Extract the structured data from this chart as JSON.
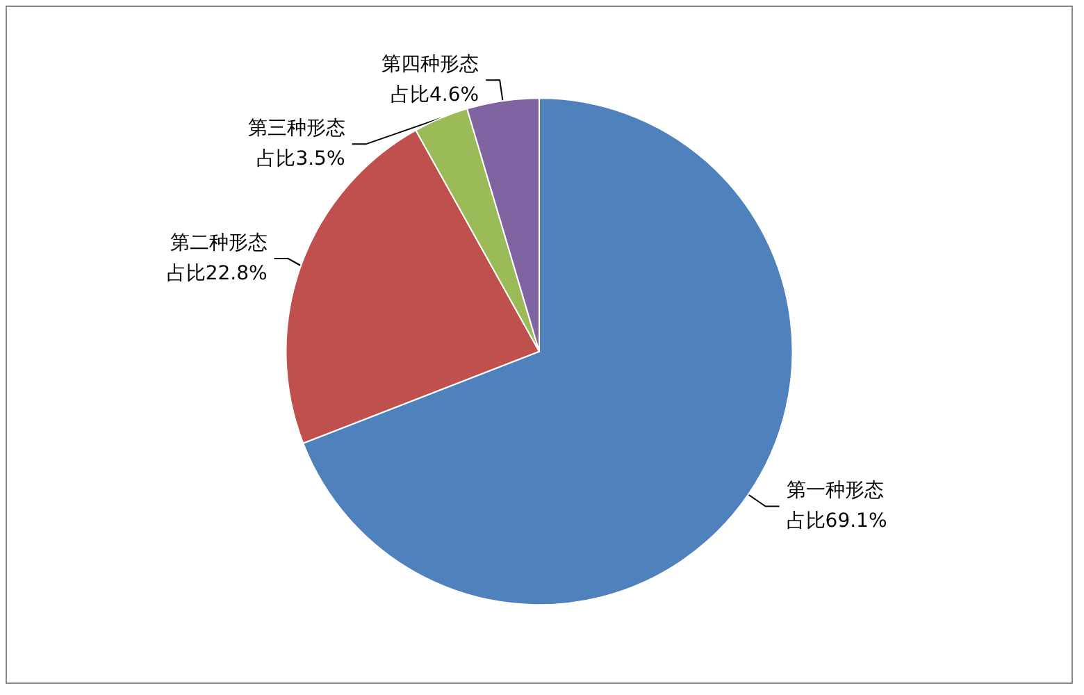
{
  "chart_data": {
    "type": "pie",
    "categories": [
      "第一种形态",
      "第二种形态",
      "第三种形态",
      "第四种形态"
    ],
    "values": [
      69.1,
      22.8,
      3.5,
      4.6
    ],
    "value_labels": [
      "占比69.1%",
      "占比22.8%",
      "占比3.5%",
      "占比4.6%"
    ],
    "colors": [
      "#4f81bd",
      "#c0504d",
      "#9bbb59",
      "#8064a2"
    ],
    "legend": false
  }
}
